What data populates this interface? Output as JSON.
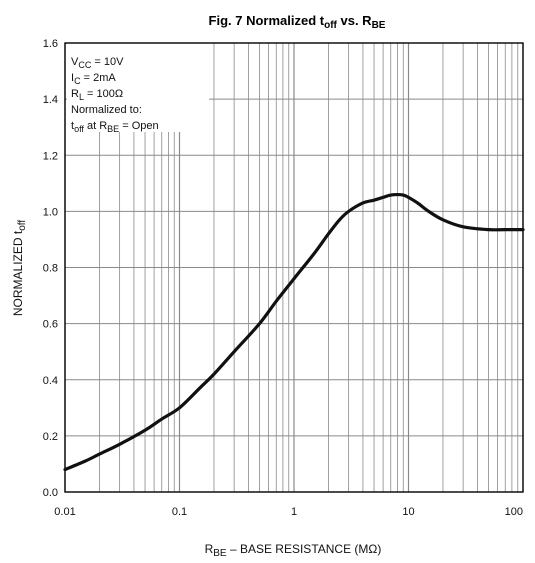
{
  "chart_data": {
    "type": "line",
    "title": {
      "prefix": "Fig. 7  Normalized t",
      "sub1": "off",
      "mid": " vs. R",
      "sub2": "BE"
    },
    "xlabel": {
      "a": "R",
      "sub": "BE",
      "b": " – BASE RESISTANCE (MΩ)"
    },
    "ylabel": {
      "a": "NORMALIZED t",
      "sub": "off"
    },
    "x_scale": "log",
    "xlim": [
      0.01,
      100
    ],
    "ylim": [
      0,
      1.6
    ],
    "grid": true,
    "xticks": [
      "0.01",
      "0.1",
      "1",
      "10",
      "100"
    ],
    "yticks": [
      "0.0",
      "0.2",
      "0.4",
      "0.6",
      "0.8",
      "1.0",
      "1.2",
      "1.4",
      "1.6"
    ],
    "annotations": {
      "vcc": {
        "a": "V",
        "sub": "CC",
        "b": " = 10V"
      },
      "ic": {
        "a": "I",
        "sub": "C",
        "b": " = 2mA"
      },
      "rl": {
        "a": "R",
        "sub": "L",
        "b": " = 100Ω"
      },
      "norm": "Normalized to:",
      "toff": {
        "a": "t",
        "sub1": "off",
        "b": " at R",
        "sub2": "BE",
        "c": " = Open"
      }
    },
    "series": [
      {
        "x": [
          0.01,
          0.015,
          0.02,
          0.03,
          0.05,
          0.07,
          0.1,
          0.15,
          0.2,
          0.3,
          0.5,
          0.7,
          1,
          1.5,
          2,
          2.5,
          3,
          4,
          5,
          6,
          7,
          8,
          9,
          10,
          12,
          15,
          20,
          30,
          50,
          70,
          100
        ],
        "y": [
          0.08,
          0.11,
          0.135,
          0.17,
          0.22,
          0.26,
          0.3,
          0.37,
          0.42,
          0.5,
          0.6,
          0.68,
          0.76,
          0.85,
          0.92,
          0.97,
          1.0,
          1.03,
          1.04,
          1.05,
          1.058,
          1.06,
          1.058,
          1.05,
          1.03,
          1.0,
          0.97,
          0.945,
          0.935,
          0.935,
          0.935
        ]
      }
    ]
  }
}
